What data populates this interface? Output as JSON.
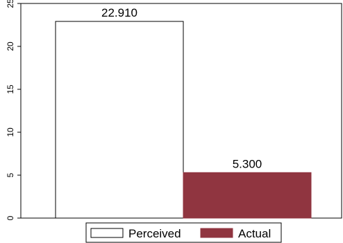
{
  "chart_data": {
    "type": "bar",
    "categories": [
      "Perceived",
      "Actual"
    ],
    "values": [
      22.91,
      5.3
    ],
    "data_labels": [
      "22.910",
      "5.300"
    ],
    "ylim": [
      0,
      25
    ],
    "yticks": [
      0,
      5,
      10,
      15,
      20,
      25
    ],
    "ytick_labels": [
      "0",
      "5",
      "10",
      "15",
      "20",
      "25"
    ],
    "title": "",
    "xlabel": "",
    "ylabel": "",
    "grid": false,
    "legend": {
      "placement": "bottom-center",
      "entries": [
        "Perceived",
        "Actual"
      ]
    },
    "colors": {
      "Perceived": "#ffffff",
      "Actual": "#903540",
      "outline": "#000000"
    }
  }
}
